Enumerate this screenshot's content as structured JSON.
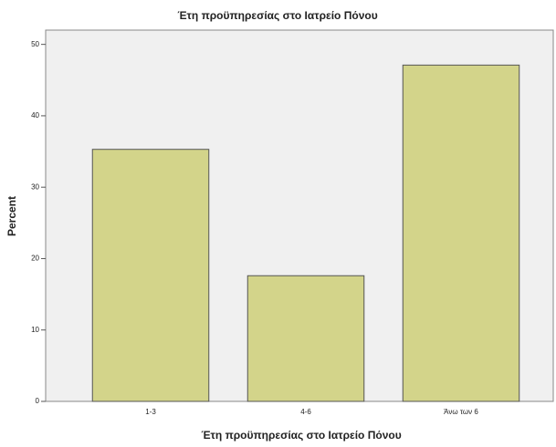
{
  "chart_data": {
    "type": "bar",
    "title": "Έτη προϋπηρεσίας στο Ιατρείο Πόνου",
    "x_label": "Έτη προϋπηρεσίας στο Ιατρείο Πόνου",
    "y_label": "Percent",
    "categories": [
      "1-3",
      "4-6",
      "Άνω των 6"
    ],
    "values": [
      35.3,
      17.6,
      47.1
    ],
    "color": "#d3d48a",
    "ylim": [
      0,
      52
    ],
    "yticks": [
      0,
      10,
      20,
      30,
      40,
      50
    ],
    "grid": false
  }
}
